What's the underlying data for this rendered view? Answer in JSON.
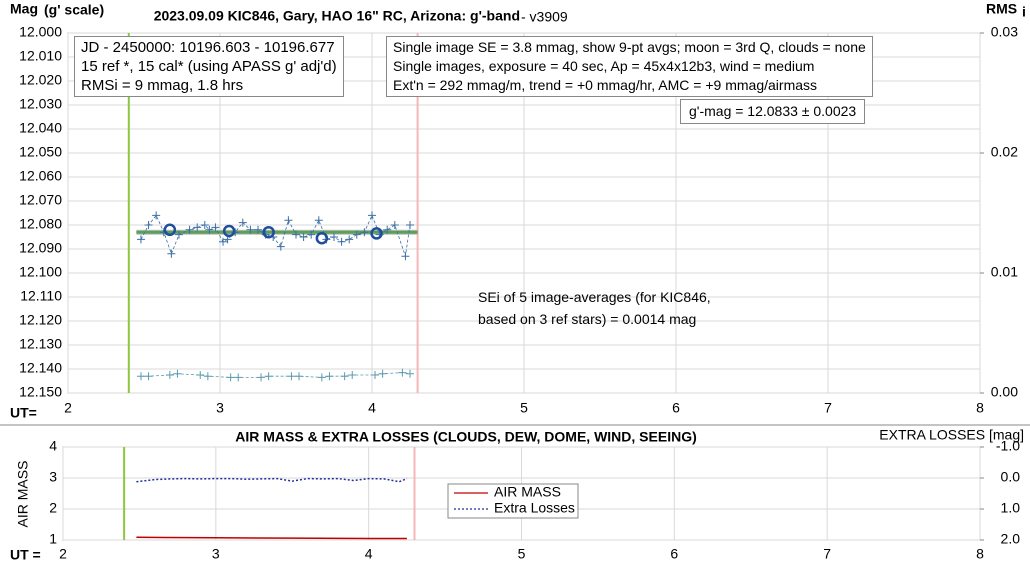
{
  "chart_data": [
    {
      "type": "scatter",
      "title": "2023.09.09 KIC846, Gary, HAO 16\" RC, Arizona: g'-band",
      "subtitle": " - v3909",
      "ylabel": "Mag",
      "ylabel_note": "(g' scale)",
      "y2label": "RMS",
      "y2label_sub": "i",
      "xlabel": "UT=",
      "xlim": [
        2,
        8
      ],
      "xticks": [
        2,
        3,
        4,
        5,
        6,
        7,
        8
      ],
      "ylim": [
        12.15,
        12.0
      ],
      "yticks": [
        {
          "value": 12.0,
          "label": "12.000"
        },
        {
          "value": 12.01,
          "label": "12.010"
        },
        {
          "value": 12.02,
          "label": "12.020"
        },
        {
          "value": 12.03,
          "label": "12.030"
        },
        {
          "value": 12.04,
          "label": "12.040"
        },
        {
          "value": 12.05,
          "label": "12.050"
        },
        {
          "value": 12.06,
          "label": "12.060"
        },
        {
          "value": 12.07,
          "label": "12.070"
        },
        {
          "value": 12.08,
          "label": "12.080"
        },
        {
          "value": 12.09,
          "label": "12.090"
        },
        {
          "value": 12.1,
          "label": "12.100"
        },
        {
          "value": 12.11,
          "label": "12.110"
        },
        {
          "value": 12.12,
          "label": "12.120"
        },
        {
          "value": 12.13,
          "label": "12.130"
        },
        {
          "value": 12.14,
          "label": "12.140"
        },
        {
          "value": 12.15,
          "label": "12.150"
        }
      ],
      "y2lim": [
        0,
        0.03
      ],
      "y2ticks": [
        {
          "value": 0,
          "label": "0.00"
        },
        {
          "value": 0.01,
          "label": "0.01"
        },
        {
          "value": 0.02,
          "label": "0.02"
        },
        {
          "value": 0.03,
          "label": "0.03"
        }
      ],
      "grid": true,
      "vlines": [
        {
          "x": 2.4,
          "color": "#8cc63f"
        },
        {
          "x": 4.3,
          "color": "#f4b6b6"
        }
      ],
      "series": [
        {
          "style": "band",
          "color": "#bfbfbf",
          "x": [
            2.45,
            4.3
          ],
          "values": [
            12.083,
            12.083
          ]
        },
        {
          "style": "line",
          "color": "#5aa05a",
          "x": [
            2.45,
            4.3
          ],
          "values": [
            12.083,
            12.083
          ]
        },
        {
          "style": "plus-dashed",
          "color": "#3a6ea5",
          "x": [
            2.48,
            2.53,
            2.58,
            2.63,
            2.68,
            2.73,
            2.8,
            2.85,
            2.9,
            2.93,
            2.97,
            3.02,
            3.05,
            3.1,
            3.15,
            3.2,
            3.25,
            3.3,
            3.35,
            3.4,
            3.45,
            3.5,
            3.55,
            3.6,
            3.65,
            3.7,
            3.75,
            3.8,
            3.85,
            3.9,
            3.95,
            4.0,
            4.05,
            4.1,
            4.15,
            4.22,
            4.25
          ],
          "values": [
            12.086,
            12.08,
            12.076,
            12.083,
            12.092,
            12.084,
            12.082,
            12.081,
            12.08,
            12.082,
            12.081,
            12.087,
            12.086,
            12.083,
            12.079,
            12.082,
            12.082,
            12.084,
            12.085,
            12.089,
            12.078,
            12.084,
            12.085,
            12.084,
            12.078,
            12.086,
            12.085,
            12.087,
            12.086,
            12.084,
            12.083,
            12.076,
            12.084,
            12.082,
            12.08,
            12.093,
            12.08
          ]
        },
        {
          "style": "circle",
          "color": "#1f4e9c",
          "x": [
            2.67,
            3.06,
            3.32,
            3.67,
            4.03
          ],
          "values": [
            12.082,
            12.0825,
            12.083,
            12.0855,
            12.0835
          ]
        },
        {
          "style": "plus-dashed",
          "color": "#5b9bb0",
          "axis": "y2",
          "x": [
            2.48,
            2.53,
            2.67,
            2.72,
            2.87,
            2.92,
            3.07,
            3.12,
            3.27,
            3.32,
            3.47,
            3.52,
            3.67,
            3.72,
            3.82,
            3.87,
            4.02,
            4.07,
            4.2,
            4.25
          ],
          "values": [
            0.0014,
            0.0014,
            0.0015,
            0.0016,
            0.0015,
            0.0014,
            0.0013,
            0.0013,
            0.0013,
            0.0014,
            0.0014,
            0.0014,
            0.0013,
            0.0014,
            0.0014,
            0.0015,
            0.0015,
            0.0016,
            0.0017,
            0.0016
          ]
        }
      ],
      "annotations": [
        [
          "JD - 2450000: 10196.603 - 10196.677",
          "15 ref *, 15 cal* (using APASS g' adj'd)",
          "RMSi = 9 mmag, 1.8 hrs"
        ],
        [
          "Single image SE = 3.8 mmag, show  9-pt avgs; moon = 3rd Q, clouds = none",
          "Single images, exposure = 40 sec, Ap = 45x4x12b3, wind = medium",
          "Ext'n = 292 mmag/m, trend = +0 mmag/hr, AMC = +9 mmag/airmass"
        ],
        [
          "g'-mag = 12.0833 ± 0.0023"
        ],
        [
          "SEi of 5 image-averages (for KIC846,",
          "based on 3 ref stars) = 0.0014 mag"
        ]
      ]
    },
    {
      "type": "line",
      "title": "AIR MASS & EXTRA LOSSES (CLOUDS, DEW, DOME, WIND, SEEING)",
      "ylabel": "AIR MASS",
      "y2label": "EXTRA LOSSES [mag]",
      "xlabel": "UT =",
      "xlim": [
        2,
        8
      ],
      "xticks": [
        2,
        3,
        4,
        5,
        6,
        7,
        8
      ],
      "ylim": [
        1,
        4
      ],
      "yticks": [
        1,
        2,
        3,
        4
      ],
      "y2lim": [
        2,
        -1
      ],
      "y2ticks": [
        {
          "value": -1,
          "label": "-1.0"
        },
        {
          "value": 0,
          "label": "0.0"
        },
        {
          "value": 1,
          "label": "1.0"
        },
        {
          "value": 2,
          "label": "2.0"
        }
      ],
      "grid": true,
      "vlines": [
        {
          "x": 2.4,
          "color": "#8cc63f"
        },
        {
          "x": 4.3,
          "color": "#f4b6b6"
        }
      ],
      "series": [
        {
          "name": "AIR MASS",
          "style": "line",
          "color": "#c00000",
          "x": [
            2.48,
            2.67,
            3.0,
            3.5,
            4.0,
            4.25
          ],
          "values": [
            1.09,
            1.08,
            1.07,
            1.06,
            1.05,
            1.05
          ]
        },
        {
          "name": "Extra Losses",
          "style": "dashed",
          "color": "#1f2f9c",
          "axis": "y2",
          "x": [
            2.48,
            2.55,
            2.6,
            2.7,
            2.8,
            2.9,
            3.0,
            3.1,
            3.2,
            3.3,
            3.4,
            3.5,
            3.6,
            3.7,
            3.8,
            3.9,
            4.0,
            4.1,
            4.2,
            4.25
          ],
          "values": [
            0.12,
            0.08,
            0.05,
            0.03,
            0.02,
            0.03,
            0.02,
            0.02,
            0.04,
            0.03,
            0.02,
            0.1,
            0.02,
            0.03,
            0.02,
            0.08,
            0.02,
            0.03,
            0.12,
            0.02
          ]
        }
      ]
    }
  ]
}
